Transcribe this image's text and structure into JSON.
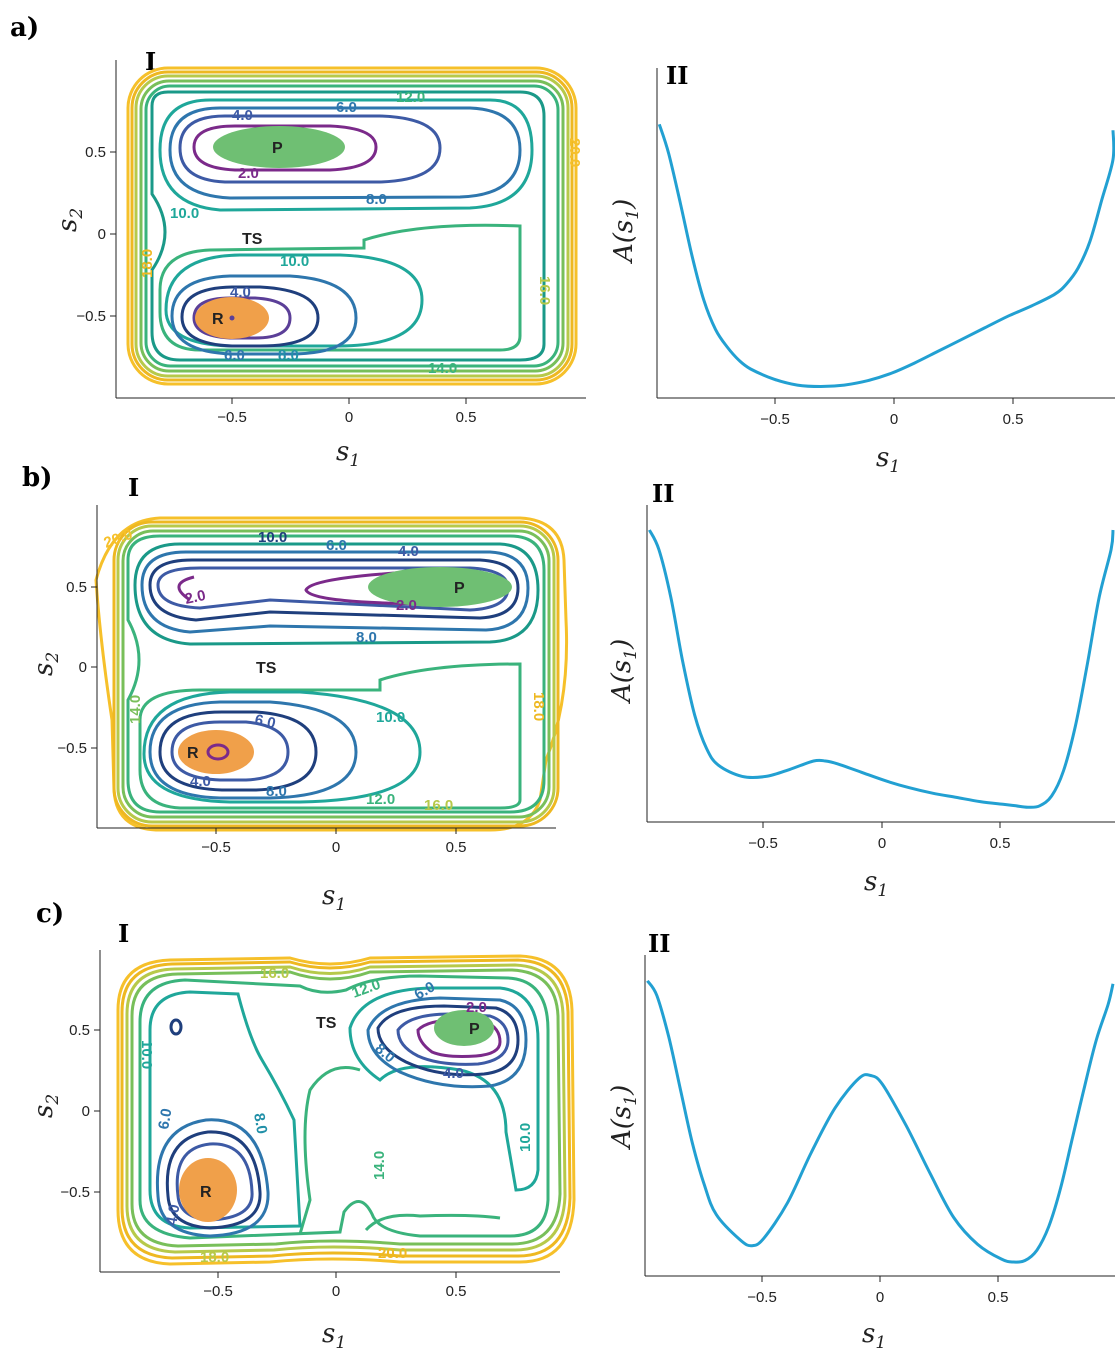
{
  "colors": {
    "series": "#22a0d2",
    "reactant": "#f0a04a",
    "product": "#6fbf73",
    "contour": [
      "#7b2a8a",
      "#5b3f98",
      "#3d5aa5",
      "#2e76ad",
      "#2290a8",
      "#1fa79a",
      "#3ab37c",
      "#78bf5a",
      "#b7c94a",
      "#eeb821",
      "#f6c02a"
    ]
  },
  "panels": [
    {
      "label": "a)",
      "contour": {
        "sublabel": "I",
        "xlabel": "s",
        "xlabel_sub": "1",
        "ylabel": "s",
        "ylabel_sub": "2",
        "xticks": [
          "−0.5",
          "0",
          "0.5"
        ],
        "yticks": [
          "0.5",
          "0",
          "−0.5"
        ],
        "wells": [
          "R",
          "P"
        ],
        "saddle": "TS",
        "contour_labels": [
          "2.0",
          "4.0",
          "6.0",
          "8.0",
          "10.0",
          "4.0",
          "6.0",
          "8.0",
          "10.0",
          "12.0",
          "14.0",
          "16.0",
          "18.0",
          "20.0"
        ]
      },
      "profile": {
        "sublabel": "II",
        "xlabel": "s",
        "xlabel_sub": "1",
        "ylabel": "A(s",
        "ylabel_sub": "1",
        "ylabel_close": ")",
        "xticks": [
          "−0.5",
          "0",
          "0.5"
        ]
      }
    },
    {
      "label": "b)",
      "contour": {
        "sublabel": "I",
        "xlabel": "s",
        "xlabel_sub": "1",
        "ylabel": "s",
        "ylabel_sub": "2",
        "xticks": [
          "−0.5",
          "0",
          "0.5"
        ],
        "yticks": [
          "0.5",
          "0",
          "−0.5"
        ],
        "wells": [
          "R",
          "P"
        ],
        "saddle": "TS",
        "contour_labels": [
          "10.0",
          "6.0",
          "4.0",
          "2.0",
          "2.0",
          "8.0",
          "6.0",
          "4.0",
          "8.0",
          "10.0",
          "12.0",
          "14.0",
          "16.0",
          "18.0",
          "20.0"
        ]
      },
      "profile": {
        "sublabel": "II",
        "xlabel": "s",
        "xlabel_sub": "1",
        "ylabel": "A(s",
        "ylabel_sub": "1",
        "ylabel_close": ")",
        "xticks": [
          "−0.5",
          "0",
          "0.5"
        ]
      }
    },
    {
      "label": "c)",
      "contour": {
        "sublabel": "I",
        "xlabel": "s",
        "xlabel_sub": "1",
        "ylabel": "s",
        "ylabel_sub": "2",
        "xticks": [
          "−0.5",
          "0",
          "0.5"
        ],
        "yticks": [
          "0.5",
          "0",
          "−0.5"
        ],
        "wells": [
          "R",
          "P"
        ],
        "saddle": "TS",
        "contour_labels": [
          "16.0",
          "12.0",
          "6.0",
          "2.0",
          "8.0",
          "4.0",
          "10.0",
          "10.0",
          "6.0",
          "4.0",
          "8.0",
          "14.0",
          "18.0",
          "20.0"
        ]
      },
      "profile": {
        "sublabel": "II",
        "xlabel": "s",
        "xlabel_sub": "1",
        "ylabel": "A(s",
        "ylabel_sub": "1",
        "ylabel_close": ")",
        "xticks": [
          "−0.5",
          "0",
          "0.5"
        ]
      }
    }
  ],
  "chart_data": [
    {
      "type": "line",
      "panel": "a) II",
      "xlabel": "s1",
      "ylabel": "A(s1)",
      "x": [
        -0.99,
        -0.95,
        -0.9,
        -0.85,
        -0.8,
        -0.75,
        -0.7,
        -0.65,
        -0.6,
        -0.5,
        -0.4,
        -0.3,
        -0.2,
        -0.1,
        0,
        0.1,
        0.2,
        0.3,
        0.4,
        0.5,
        0.6,
        0.7,
        0.75,
        0.8,
        0.85,
        0.9,
        0.95,
        0.99
      ],
      "values": [
        9.0,
        8.0,
        6.3,
        4.5,
        3.0,
        2.0,
        1.4,
        0.95,
        0.65,
        0.3,
        0.1,
        0.05,
        0.1,
        0.25,
        0.5,
        0.85,
        1.25,
        1.65,
        2.05,
        2.45,
        2.8,
        3.2,
        3.55,
        4.1,
        5.0,
        6.4,
        7.8,
        8.8
      ],
      "xlim": [
        -1.0,
        1.0
      ],
      "ylim": [
        0,
        10
      ]
    },
    {
      "type": "line",
      "panel": "b) II",
      "xlabel": "s1",
      "ylabel": "A(s1)",
      "x": [
        -0.99,
        -0.95,
        -0.9,
        -0.85,
        -0.8,
        -0.75,
        -0.7,
        -0.6,
        -0.5,
        -0.4,
        -0.3,
        -0.25,
        -0.2,
        -0.1,
        0,
        0.1,
        0.2,
        0.3,
        0.4,
        0.5,
        0.55,
        0.6,
        0.65,
        0.7,
        0.75,
        0.8,
        0.85,
        0.9,
        0.95,
        0.99
      ],
      "values": [
        10.0,
        9.3,
        7.6,
        5.3,
        3.4,
        2.2,
        1.6,
        1.2,
        1.2,
        1.45,
        1.75,
        1.75,
        1.65,
        1.35,
        1.05,
        0.8,
        0.6,
        0.45,
        0.3,
        0.2,
        0.15,
        0.1,
        0.15,
        0.5,
        1.4,
        3.0,
        5.2,
        7.6,
        9.3,
        10.0
      ],
      "xlim": [
        -1.0,
        1.0
      ],
      "ylim": [
        0,
        10.5
      ]
    },
    {
      "type": "line",
      "panel": "c) II",
      "xlabel": "s1",
      "ylabel": "A(s1)",
      "x": [
        -0.99,
        -0.95,
        -0.9,
        -0.85,
        -0.8,
        -0.75,
        -0.7,
        -0.6,
        -0.55,
        -0.5,
        -0.4,
        -0.3,
        -0.2,
        -0.1,
        -0.05,
        0,
        0.1,
        0.2,
        0.3,
        0.4,
        0.5,
        0.55,
        0.6,
        0.65,
        0.7,
        0.75,
        0.8,
        0.85,
        0.9,
        0.95,
        0.99
      ],
      "values": [
        9.5,
        9.0,
        7.6,
        5.8,
        4.0,
        2.6,
        1.6,
        0.75,
        0.55,
        0.8,
        2.0,
        3.7,
        5.2,
        6.2,
        6.3,
        6.0,
        4.6,
        3.0,
        1.5,
        0.6,
        0.1,
        0.0,
        0.05,
        0.4,
        1.2,
        2.5,
        4.2,
        5.9,
        7.5,
        8.7,
        9.4
      ],
      "xlim": [
        -1.0,
        1.0
      ],
      "ylim": [
        0,
        10
      ]
    }
  ]
}
